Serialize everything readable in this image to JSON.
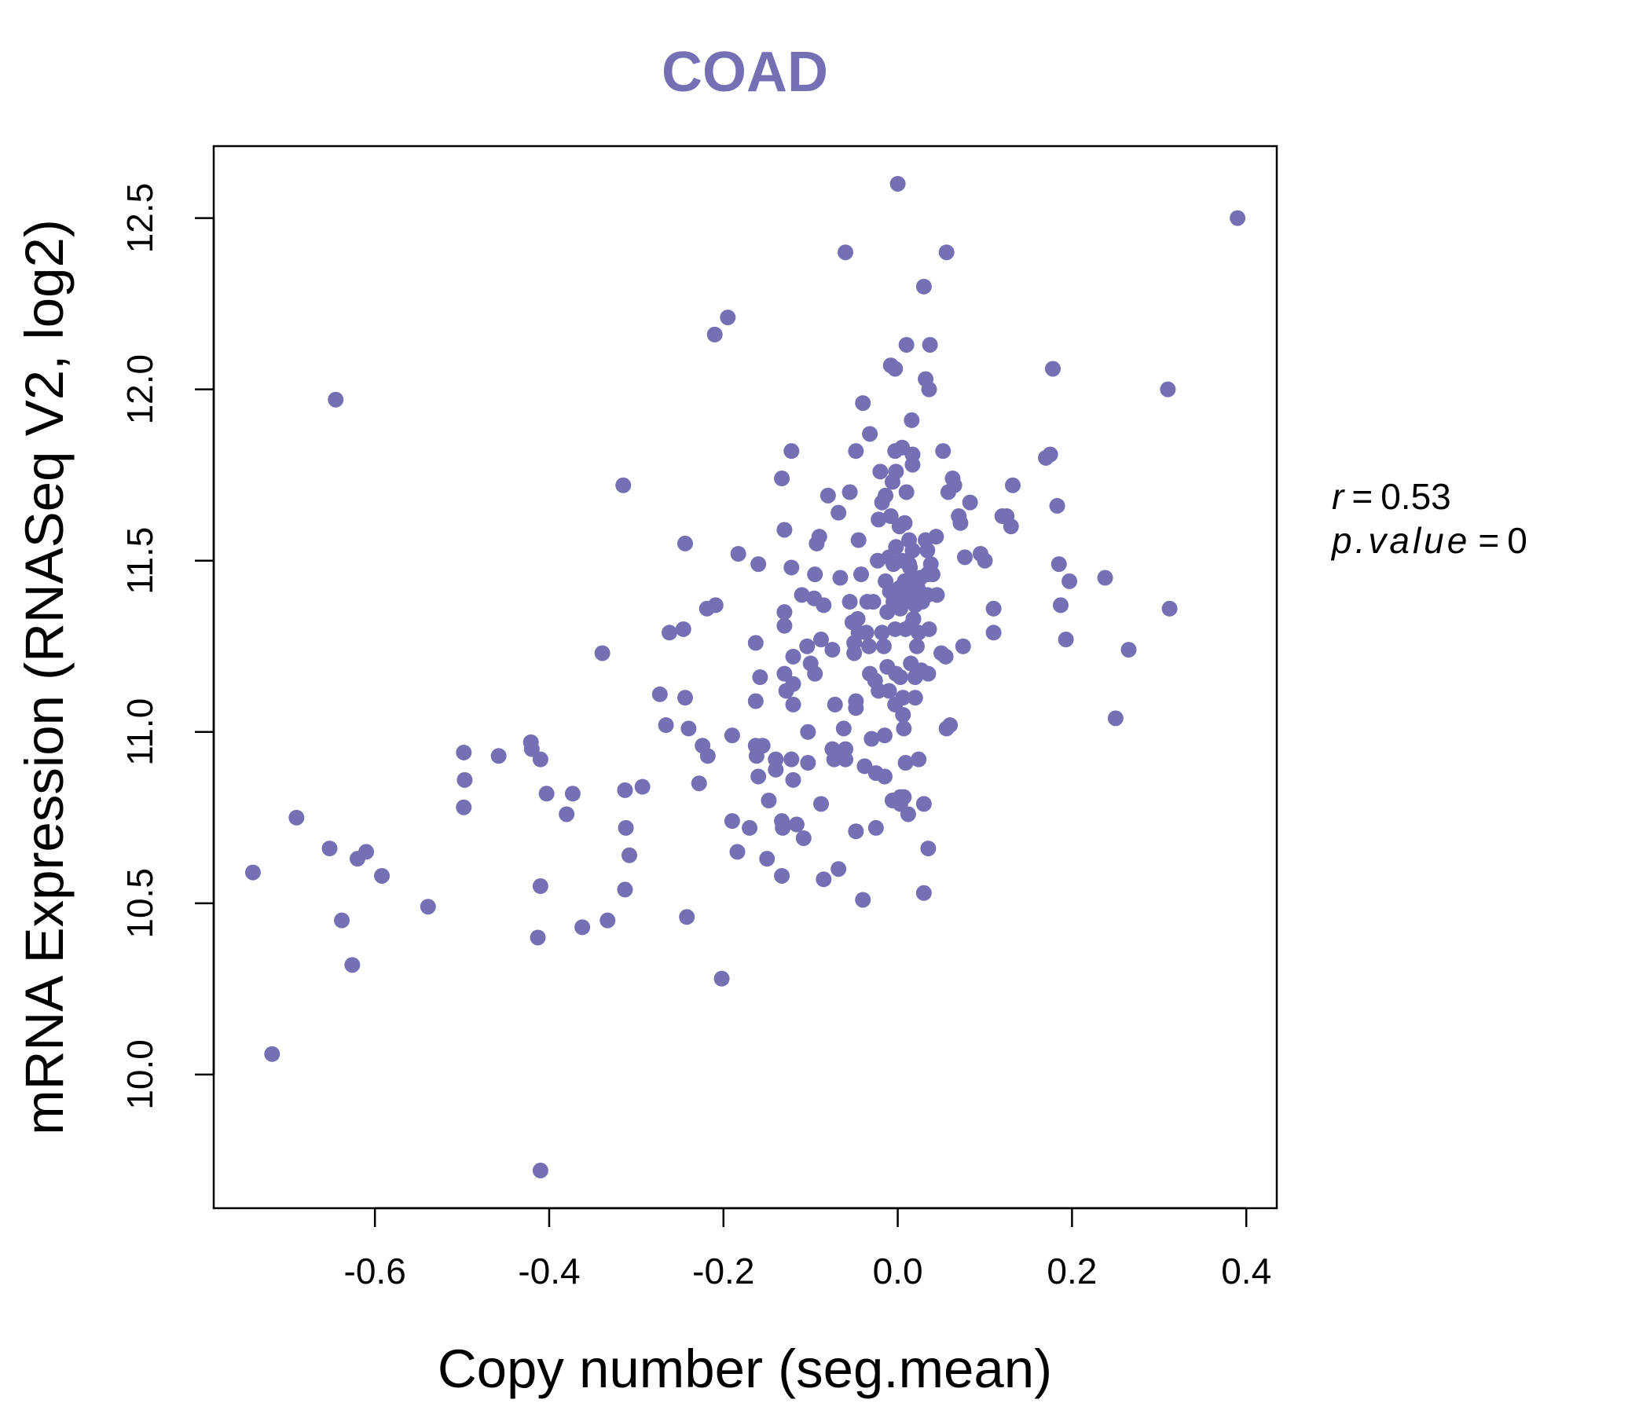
{
  "chart_data": {
    "type": "scatter",
    "title": "COAD",
    "xlabel": "Copy number (seg.mean)",
    "ylabel": "mRNA Expression (RNASeq V2, log2)",
    "xlim": [
      -0.785,
      0.435
    ],
    "ylim": [
      9.61,
      12.71
    ],
    "x_ticks": [
      -0.6,
      -0.4,
      -0.2,
      0.0,
      0.2,
      0.4
    ],
    "x_tick_labels": [
      "-0.6",
      "-0.4",
      "-0.2",
      "0.0",
      "0.2",
      "0.4"
    ],
    "y_ticks": [
      10.0,
      10.5,
      11.0,
      11.5,
      12.0,
      12.5
    ],
    "y_tick_labels": [
      "10.0",
      "10.5",
      "11.0",
      "11.5",
      "12.0",
      "12.5"
    ],
    "grid": false,
    "color": "#7570b3",
    "stats": {
      "r_label": "r",
      "r_value": "0.53",
      "p_label": "p.value",
      "p_value": "0",
      "eq": "="
    },
    "points": [
      [
        -0.74,
        10.59
      ],
      [
        -0.718,
        10.06
      ],
      [
        -0.69,
        10.75
      ],
      [
        -0.652,
        10.66
      ],
      [
        -0.645,
        11.97
      ],
      [
        -0.638,
        10.45
      ],
      [
        -0.626,
        10.32
      ],
      [
        -0.62,
        10.63
      ],
      [
        -0.61,
        10.65
      ],
      [
        -0.592,
        10.58
      ],
      [
        -0.539,
        10.49
      ],
      [
        -0.498,
        10.94
      ],
      [
        -0.497,
        10.86
      ],
      [
        -0.498,
        10.78
      ],
      [
        -0.458,
        10.93
      ],
      [
        -0.421,
        10.97
      ],
      [
        -0.42,
        10.95
      ],
      [
        -0.41,
        10.92
      ],
      [
        -0.403,
        10.82
      ],
      [
        -0.41,
        10.55
      ],
      [
        -0.413,
        10.4
      ],
      [
        -0.41,
        9.72
      ],
      [
        -0.38,
        10.76
      ],
      [
        -0.373,
        10.82
      ],
      [
        -0.362,
        10.43
      ],
      [
        -0.339,
        11.23
      ],
      [
        -0.333,
        10.45
      ],
      [
        -0.315,
        11.72
      ],
      [
        -0.313,
        10.83
      ],
      [
        -0.312,
        10.72
      ],
      [
        -0.308,
        10.64
      ],
      [
        -0.313,
        10.54
      ],
      [
        -0.293,
        10.84
      ],
      [
        -0.273,
        11.11
      ],
      [
        -0.266,
        11.02
      ],
      [
        -0.262,
        11.29
      ],
      [
        -0.246,
        11.3
      ],
      [
        -0.244,
        11.55
      ],
      [
        -0.244,
        11.1
      ],
      [
        -0.24,
        11.01
      ],
      [
        -0.242,
        10.46
      ],
      [
        -0.228,
        10.85
      ],
      [
        -0.224,
        10.96
      ],
      [
        -0.218,
        10.93
      ],
      [
        -0.219,
        11.36
      ],
      [
        -0.209,
        11.37
      ],
      [
        -0.21,
        12.16
      ],
      [
        -0.195,
        12.21
      ],
      [
        -0.202,
        10.28
      ],
      [
        -0.19,
        10.74
      ],
      [
        -0.19,
        10.99
      ],
      [
        -0.184,
        10.65
      ],
      [
        -0.183,
        11.52
      ],
      [
        -0.17,
        10.72
      ],
      [
        -0.163,
        11.26
      ],
      [
        -0.163,
        11.09
      ],
      [
        -0.16,
        11.49
      ],
      [
        -0.158,
        11.16
      ],
      [
        -0.163,
        10.96
      ],
      [
        -0.162,
        10.93
      ],
      [
        -0.155,
        10.96
      ],
      [
        -0.16,
        10.87
      ],
      [
        -0.148,
        10.8
      ],
      [
        -0.15,
        10.63
      ],
      [
        -0.14,
        10.92
      ],
      [
        -0.14,
        10.89
      ],
      [
        -0.133,
        11.74
      ],
      [
        -0.13,
        11.59
      ],
      [
        -0.13,
        11.35
      ],
      [
        -0.13,
        11.31
      ],
      [
        -0.13,
        11.17
      ],
      [
        -0.128,
        11.12
      ],
      [
        -0.133,
        10.74
      ],
      [
        -0.132,
        10.72
      ],
      [
        -0.133,
        10.58
      ],
      [
        -0.122,
        11.82
      ],
      [
        -0.122,
        11.48
      ],
      [
        -0.12,
        11.22
      ],
      [
        -0.12,
        11.14
      ],
      [
        -0.12,
        11.08
      ],
      [
        -0.122,
        10.92
      ],
      [
        -0.12,
        10.86
      ],
      [
        -0.116,
        10.73
      ],
      [
        -0.11,
        11.4
      ],
      [
        -0.104,
        11.25
      ],
      [
        -0.1,
        11.2
      ],
      [
        -0.103,
        11.0
      ],
      [
        -0.103,
        10.91
      ],
      [
        -0.108,
        10.69
      ],
      [
        -0.095,
        11.46
      ],
      [
        -0.096,
        11.39
      ],
      [
        -0.095,
        11.17
      ],
      [
        -0.093,
        11.55
      ],
      [
        -0.09,
        11.57
      ],
      [
        -0.085,
        11.37
      ],
      [
        -0.088,
        11.27
      ],
      [
        -0.088,
        10.79
      ],
      [
        -0.085,
        10.57
      ],
      [
        -0.08,
        11.69
      ],
      [
        -0.075,
        11.24
      ],
      [
        -0.072,
        11.08
      ],
      [
        -0.075,
        10.95
      ],
      [
        -0.073,
        10.92
      ],
      [
        -0.068,
        11.64
      ],
      [
        -0.066,
        11.45
      ],
      [
        -0.068,
        10.6
      ],
      [
        -0.062,
        11.01
      ],
      [
        -0.06,
        10.95
      ],
      [
        -0.06,
        10.92
      ],
      [
        -0.06,
        12.4
      ],
      [
        -0.055,
        11.7
      ],
      [
        -0.055,
        11.38
      ],
      [
        -0.052,
        11.32
      ],
      [
        -0.05,
        11.26
      ],
      [
        -0.05,
        11.23
      ],
      [
        -0.048,
        11.82
      ],
      [
        -0.046,
        11.33
      ],
      [
        -0.048,
        11.09
      ],
      [
        -0.048,
        11.07
      ],
      [
        -0.048,
        10.71
      ],
      [
        -0.045,
        11.29
      ],
      [
        -0.045,
        11.56
      ],
      [
        -0.042,
        11.46
      ],
      [
        -0.04,
        11.96
      ],
      [
        -0.04,
        10.51
      ],
      [
        -0.038,
        10.9
      ],
      [
        -0.036,
        11.29
      ],
      [
        -0.035,
        11.38
      ],
      [
        -0.032,
        11.87
      ],
      [
        -0.033,
        11.25
      ],
      [
        -0.032,
        11.17
      ],
      [
        -0.03,
        10.98
      ],
      [
        -0.028,
        11.38
      ],
      [
        -0.026,
        11.15
      ],
      [
        -0.025,
        10.72
      ],
      [
        -0.025,
        10.88
      ],
      [
        -0.023,
        11.5
      ],
      [
        -0.022,
        11.62
      ],
      [
        -0.022,
        11.12
      ],
      [
        -0.02,
        11.76
      ],
      [
        -0.018,
        11.67
      ],
      [
        -0.016,
        11.25
      ],
      [
        -0.018,
        11.29
      ],
      [
        -0.015,
        10.99
      ],
      [
        -0.015,
        10.87
      ],
      [
        -0.014,
        11.69
      ],
      [
        -0.014,
        11.44
      ],
      [
        -0.012,
        11.35
      ],
      [
        -0.012,
        11.19
      ],
      [
        -0.01,
        11.51
      ],
      [
        -0.009,
        11.41
      ],
      [
        -0.01,
        11.12
      ],
      [
        -0.008,
        12.07
      ],
      [
        -0.008,
        11.63
      ],
      [
        -0.006,
        11.73
      ],
      [
        -0.005,
        11.49
      ],
      [
        -0.005,
        11.38
      ],
      [
        -0.003,
        12.06
      ],
      [
        -0.003,
        11.82
      ],
      [
        -0.002,
        11.76
      ],
      [
        -0.002,
        11.54
      ],
      [
        -0.003,
        11.3
      ],
      [
        -0.002,
        11.17
      ],
      [
        -0.003,
        11.08
      ],
      [
        -0.006,
        10.8
      ],
      [
        0.0,
        12.6
      ],
      [
        0.002,
        11.6
      ],
      [
        0.002,
        11.42
      ],
      [
        0.003,
        11.36
      ],
      [
        0.003,
        11.16
      ],
      [
        0.003,
        10.81
      ],
      [
        0.003,
        10.79
      ],
      [
        0.005,
        11.83
      ],
      [
        0.005,
        11.5
      ],
      [
        0.006,
        11.1
      ],
      [
        0.006,
        11.05
      ],
      [
        0.007,
        11.01
      ],
      [
        0.007,
        10.81
      ],
      [
        0.008,
        11.61
      ],
      [
        0.008,
        11.44
      ],
      [
        0.009,
        11.3
      ],
      [
        0.009,
        10.91
      ],
      [
        0.01,
        12.13
      ],
      [
        0.01,
        11.7
      ],
      [
        0.01,
        11.39
      ],
      [
        0.012,
        10.76
      ],
      [
        0.013,
        11.56
      ],
      [
        0.013,
        11.49
      ],
      [
        0.014,
        11.48
      ],
      [
        0.015,
        11.43
      ],
      [
        0.015,
        11.31
      ],
      [
        0.015,
        11.2
      ],
      [
        0.016,
        11.91
      ],
      [
        0.017,
        11.81
      ],
      [
        0.017,
        11.78
      ],
      [
        0.017,
        11.53
      ],
      [
        0.018,
        11.45
      ],
      [
        0.018,
        11.33
      ],
      [
        0.02,
        11.16
      ],
      [
        0.02,
        11.1
      ],
      [
        0.02,
        11.37
      ],
      [
        0.022,
        11.41
      ],
      [
        0.022,
        11.25
      ],
      [
        0.023,
        11.42
      ],
      [
        0.024,
        11.29
      ],
      [
        0.024,
        10.92
      ],
      [
        0.026,
        11.45
      ],
      [
        0.027,
        11.18
      ],
      [
        0.028,
        11.38
      ],
      [
        0.03,
        12.3
      ],
      [
        0.03,
        10.79
      ],
      [
        0.03,
        10.53
      ],
      [
        0.032,
        12.03
      ],
      [
        0.032,
        11.56
      ],
      [
        0.034,
        11.53
      ],
      [
        0.034,
        11.4
      ],
      [
        0.034,
        11.46
      ],
      [
        0.035,
        11.17
      ],
      [
        0.035,
        10.66
      ],
      [
        0.036,
        12.0
      ],
      [
        0.036,
        11.3
      ],
      [
        0.037,
        12.13
      ],
      [
        0.038,
        11.49
      ],
      [
        0.04,
        11.46
      ],
      [
        0.044,
        11.57
      ],
      [
        0.045,
        11.4
      ],
      [
        0.05,
        11.23
      ],
      [
        0.052,
        11.82
      ],
      [
        0.055,
        11.22
      ],
      [
        0.056,
        12.4
      ],
      [
        0.056,
        11.01
      ],
      [
        0.058,
        11.7
      ],
      [
        0.06,
        11.02
      ],
      [
        0.063,
        11.74
      ],
      [
        0.065,
        11.72
      ],
      [
        0.07,
        11.63
      ],
      [
        0.072,
        11.61
      ],
      [
        0.075,
        11.25
      ],
      [
        0.077,
        11.51
      ],
      [
        0.083,
        11.67
      ],
      [
        0.095,
        11.52
      ],
      [
        0.1,
        11.5
      ],
      [
        0.11,
        11.36
      ],
      [
        0.11,
        11.29
      ],
      [
        0.12,
        11.63
      ],
      [
        0.125,
        11.63
      ],
      [
        0.13,
        11.6
      ],
      [
        0.132,
        11.72
      ],
      [
        0.17,
        11.8
      ],
      [
        0.175,
        11.81
      ],
      [
        0.178,
        12.06
      ],
      [
        0.183,
        11.66
      ],
      [
        0.185,
        11.49
      ],
      [
        0.187,
        11.37
      ],
      [
        0.193,
        11.27
      ],
      [
        0.197,
        11.44
      ],
      [
        0.238,
        11.45
      ],
      [
        0.25,
        11.04
      ],
      [
        0.265,
        11.24
      ],
      [
        0.31,
        12.0
      ],
      [
        0.312,
        11.36
      ],
      [
        0.39,
        12.5
      ]
    ]
  }
}
